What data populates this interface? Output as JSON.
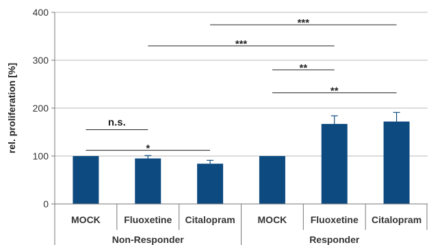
{
  "chart_data": {
    "type": "bar",
    "ylabel": "rel. proliferation [%]",
    "ylim": [
      0,
      400
    ],
    "yticks": [
      "0",
      "100",
      "200",
      "300",
      "400"
    ],
    "grid": true,
    "categories": [
      "MOCK",
      "Fluoxetine",
      "Citalopram",
      "MOCK",
      "Fluoxetine",
      "Citalopram"
    ],
    "values": [
      100,
      95,
      84,
      100,
      167,
      172
    ],
    "errors": [
      0,
      6,
      7,
      0,
      17,
      19
    ],
    "groups": [
      {
        "label": "Non-Responder",
        "from": 0,
        "to": 2
      },
      {
        "label": "Responder",
        "from": 3,
        "to": 5
      }
    ],
    "significance": [
      {
        "from": 0,
        "to": 1,
        "y": 155,
        "label": "n.s."
      },
      {
        "from": 0,
        "to": 2,
        "y": 112,
        "label": "*"
      },
      {
        "from": 3,
        "to": 4,
        "y": 280,
        "label": "**"
      },
      {
        "from": 3,
        "to": 5,
        "y": 232,
        "label": "**"
      },
      {
        "from": 1,
        "to": 4,
        "y": 330,
        "label": "***"
      },
      {
        "from": 2,
        "to": 5,
        "y": 374,
        "label": "***"
      }
    ],
    "colors": {
      "bar": "#0d4a80",
      "grid": "#b8b8b8",
      "axis": "#777777",
      "sig": "#222222"
    }
  }
}
